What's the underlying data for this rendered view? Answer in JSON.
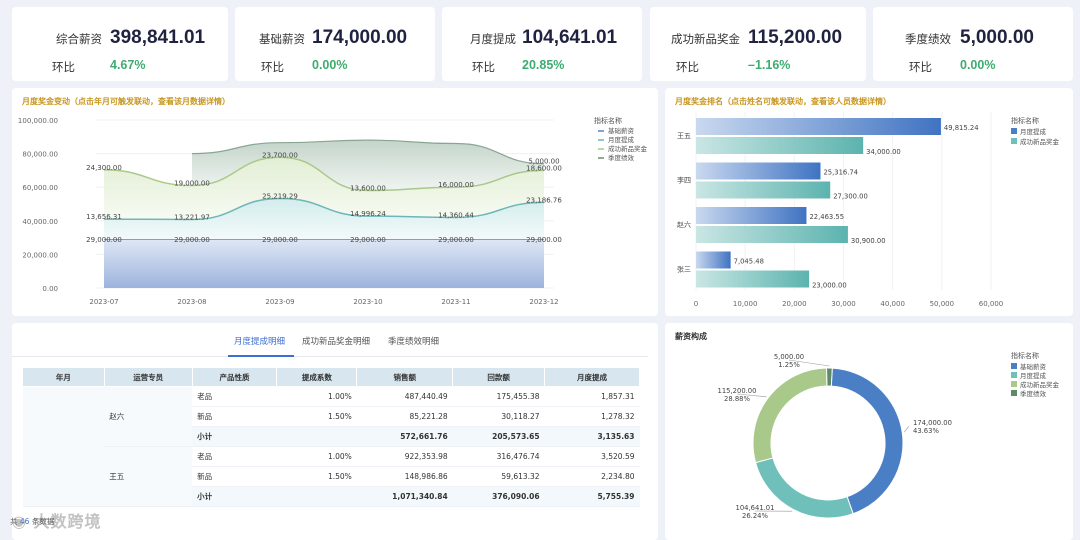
{
  "kpis": [
    {
      "name": "综合薪资",
      "value": "398,841.01",
      "ratio_label": "环比",
      "ratio": "4.67%"
    },
    {
      "name": "基础薪资",
      "value": "174,000.00",
      "ratio_label": "环比",
      "ratio": "0.00%"
    },
    {
      "name": "月度提成",
      "value": "104,641.01",
      "ratio_label": "环比",
      "ratio": "20.85%"
    },
    {
      "name": "成功新品奖金",
      "value": "115,200.00",
      "ratio_label": "环比",
      "ratio": "–1.16%"
    },
    {
      "name": "季度绩效",
      "value": "5,000.00",
      "ratio_label": "环比",
      "ratio": "0.00%"
    }
  ],
  "line_panel": {
    "title": "月度奖金变动（点击年月可触发联动，查看该月数据详情）"
  },
  "bar_panel": {
    "title": "月度奖金排名（点击姓名可触发联动，查看该人员数据详情）"
  },
  "pie_panel": {
    "title": "薪资构成"
  },
  "tabs": [
    "月度提成明细",
    "成功新品奖金明细",
    "季度绩效明细"
  ],
  "table": {
    "headers": [
      "年月",
      "运营专员",
      "产品性质",
      "提成系数",
      "销售额",
      "回款额",
      "月度提成"
    ],
    "groups": [
      {
        "person": "赵六",
        "rows": [
          [
            "老品",
            "1.00%",
            "487,440.49",
            "175,455.38",
            "1,857.31"
          ],
          [
            "新品",
            "1.50%",
            "85,221.28",
            "30,118.27",
            "1,278.32"
          ]
        ],
        "subtotal": [
          "小计",
          "",
          "572,661.76",
          "205,573.65",
          "3,135.63"
        ]
      },
      {
        "person": "王五",
        "rows": [
          [
            "老品",
            "1.00%",
            "922,353.98",
            "316,476.74",
            "3,520.59"
          ],
          [
            "新品",
            "1.50%",
            "148,986.86",
            "59,613.32",
            "2,234.80"
          ]
        ],
        "subtotal": [
          "小计",
          "",
          "1,071,340.84",
          "376,090.06",
          "5,755.39"
        ]
      }
    ]
  },
  "footer": {
    "prefix": "共",
    "count": "46",
    "suffix": "条数据"
  },
  "watermark": "大数跨境",
  "chart_data": [
    {
      "type": "area",
      "categories": [
        "2023-07",
        "2023-08",
        "2023-09",
        "2023-10",
        "2023-11",
        "2023-12"
      ],
      "series": [
        {
          "name": "基础薪资",
          "values": [
            29000,
            29000,
            29000,
            29000,
            29000,
            29000
          ],
          "color": "#5b7fc4"
        },
        {
          "name": "月度提成",
          "values": [
            13656.31,
            13221.97,
            25219.29,
            14996.24,
            14360.44,
            23186.76
          ],
          "color": "#6fb6b8"
        },
        {
          "name": "成功新品奖金",
          "values": [
            24300,
            19000,
            23700,
            13600,
            16000,
            18600
          ],
          "color": "#a9c98a"
        },
        {
          "name": "季度绩效",
          "values": [
            0,
            0,
            0,
            0,
            0,
            5000
          ],
          "color": "#6a8f72"
        }
      ],
      "labels": [
        {
          "text": "24,300.00",
          "i": 0,
          "y": 70300
        },
        {
          "text": "19,000.00",
          "i": 1,
          "y": 61000
        },
        {
          "text": "23,700.00",
          "i": 2,
          "y": 77800
        },
        {
          "text": "13,600.00",
          "i": 3,
          "y": 58000
        },
        {
          "text": "16,000.00",
          "i": 4,
          "y": 60000
        },
        {
          "text": "18,600.00",
          "i": 5,
          "y": 70000
        },
        {
          "text": "5,000.00",
          "i": 5,
          "y": 74000
        },
        {
          "text": "13,656.31",
          "i": 0,
          "y": 41000
        },
        {
          "text": "13,221.97",
          "i": 1,
          "y": 40800
        },
        {
          "text": "25,219.29",
          "i": 2,
          "y": 53300
        },
        {
          "text": "14,996.24",
          "i": 3,
          "y": 42800
        },
        {
          "text": "14,360.44",
          "i": 4,
          "y": 42000
        },
        {
          "text": "23,186.76",
          "i": 5,
          "y": 51000
        },
        {
          "text": "29,000.00",
          "i": 0,
          "y": 27500
        },
        {
          "text": "29,000.00",
          "i": 1,
          "y": 27500
        },
        {
          "text": "29,000.00",
          "i": 2,
          "y": 27500
        },
        {
          "text": "29,000.00",
          "i": 3,
          "y": 27500
        },
        {
          "text": "29,000.00",
          "i": 4,
          "y": 27500
        },
        {
          "text": "29,000.00",
          "i": 5,
          "y": 27500
        }
      ],
      "yticks": [
        "100,000.00",
        "80,000.00",
        "60,000.00",
        "40,000.00",
        "20,000.00",
        "0.00"
      ],
      "ylim": [
        0,
        100000
      ],
      "legend_title": "指标名称",
      "legend_placement": "right"
    },
    {
      "type": "bar",
      "orientation": "horizontal",
      "categories": [
        "王五",
        "李四",
        "赵六",
        "张三"
      ],
      "series": [
        {
          "name": "月度提成",
          "values": [
            49815.24,
            25316.74,
            22463.55,
            7045.48
          ],
          "color": "#4a7fc6"
        },
        {
          "name": "成功新品奖金",
          "values": [
            34000,
            27300,
            30900,
            23000
          ],
          "color": "#6fbfba"
        }
      ],
      "value_labels": [
        [
          "49,815.24",
          "34,000.00"
        ],
        [
          "25,316.74",
          "27,300.00"
        ],
        [
          "22,463.55",
          "30,900.00"
        ],
        [
          "7,045.48",
          "23,000.00"
        ]
      ],
      "xticks": [
        "0",
        "10,000",
        "20,000",
        "30,000",
        "40,000",
        "50,000",
        "60,000"
      ],
      "xlim": [
        0,
        60000
      ],
      "legend_title": "指标名称",
      "legend_placement": "right"
    },
    {
      "type": "pie",
      "style": "donut",
      "slices": [
        {
          "name": "基础薪资",
          "value": 174000,
          "label": "174,000.00",
          "pct": "43.63%",
          "color": "#4a7fc6"
        },
        {
          "name": "月度提成",
          "value": 104641.01,
          "label": "104,641.01",
          "pct": "26.24%",
          "color": "#6fbfba"
        },
        {
          "name": "成功新品奖金",
          "value": 115200,
          "label": "115,200.00",
          "pct": "28.88%",
          "color": "#a9c98a"
        },
        {
          "name": "季度绩效",
          "value": 5000,
          "label": "5,000.00",
          "pct": "1.25%",
          "color": "#5e8a68"
        }
      ],
      "legend_title": "指标名称",
      "legend_placement": "right"
    }
  ]
}
